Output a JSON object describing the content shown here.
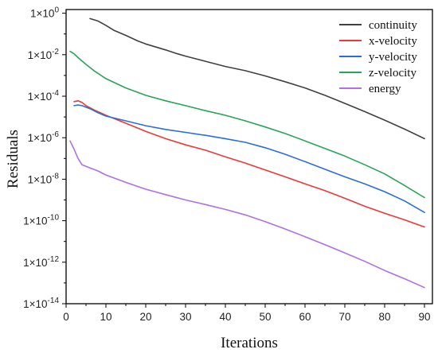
{
  "chart_data": {
    "type": "line",
    "xlabel": "Iterations",
    "ylabel": "Residuals",
    "x_scale": "linear",
    "y_scale": "log",
    "xlim": [
      0,
      92
    ],
    "ylim": [
      1e-14,
      1.5
    ],
    "xticks": [
      0,
      10,
      20,
      30,
      40,
      50,
      60,
      70,
      80,
      90
    ],
    "yticks": [
      {
        "value": 1,
        "exp": "0"
      },
      {
        "value": 0.01,
        "exp": "-2"
      },
      {
        "value": 0.0001,
        "exp": "-4"
      },
      {
        "value": 1e-06,
        "exp": "-6"
      },
      {
        "value": 1e-08,
        "exp": "-8"
      },
      {
        "value": 1e-10,
        "exp": "-10"
      },
      {
        "value": 1e-12,
        "exp": "-12"
      },
      {
        "value": 1e-14,
        "exp": "-14"
      }
    ],
    "ytick_base": "1×10",
    "grid": false,
    "legend_position": "top-right",
    "series": [
      {
        "name": "continuity",
        "color": "#404040",
        "points": [
          [
            6,
            0.55
          ],
          [
            8,
            0.42
          ],
          [
            10,
            0.26
          ],
          [
            12,
            0.15
          ],
          [
            15,
            0.085
          ],
          [
            18,
            0.046
          ],
          [
            20,
            0.033
          ],
          [
            25,
            0.017
          ],
          [
            28,
            0.011
          ],
          [
            30,
            0.0085
          ],
          [
            35,
            0.0048
          ],
          [
            40,
            0.0027
          ],
          [
            45,
            0.0017
          ],
          [
            50,
            0.00095
          ],
          [
            55,
            0.0005
          ],
          [
            60,
            0.00025
          ],
          [
            65,
            0.00011
          ],
          [
            70,
            4.5e-05
          ],
          [
            75,
            1.8e-05
          ],
          [
            80,
            7e-06
          ],
          [
            85,
            2.6e-06
          ],
          [
            90,
            9e-07
          ]
        ]
      },
      {
        "name": "x-velocity",
        "color": "#e83a3a",
        "points": [
          [
            2,
            5.5e-05
          ],
          [
            3,
            6e-05
          ],
          [
            4,
            5e-05
          ],
          [
            5,
            3.5e-05
          ],
          [
            7,
            2.2e-05
          ],
          [
            10,
            1.2e-05
          ],
          [
            15,
            5e-06
          ],
          [
            20,
            2e-06
          ],
          [
            25,
            9e-07
          ],
          [
            30,
            4.5e-07
          ],
          [
            35,
            2.5e-07
          ],
          [
            40,
            1.2e-07
          ],
          [
            45,
            6e-08
          ],
          [
            50,
            2.8e-08
          ],
          [
            55,
            1.3e-08
          ],
          [
            60,
            6e-09
          ],
          [
            65,
            2.8e-09
          ],
          [
            70,
            1.2e-09
          ],
          [
            75,
            5e-10
          ],
          [
            80,
            2.3e-10
          ],
          [
            85,
            1.1e-10
          ],
          [
            90,
            5e-11
          ]
        ]
      },
      {
        "name": "y-velocity",
        "color": "#2a6fd6",
        "points": [
          [
            2,
            3.5e-05
          ],
          [
            3,
            3.8e-05
          ],
          [
            4,
            3.5e-05
          ],
          [
            6,
            2.5e-05
          ],
          [
            8,
            1.6e-05
          ],
          [
            10,
            1.1e-05
          ],
          [
            15,
            6.5e-06
          ],
          [
            20,
            3.8e-06
          ],
          [
            25,
            2.5e-06
          ],
          [
            30,
            1.8e-06
          ],
          [
            35,
            1.3e-06
          ],
          [
            40,
            9e-07
          ],
          [
            45,
            6e-07
          ],
          [
            50,
            3.3e-07
          ],
          [
            55,
            1.6e-07
          ],
          [
            60,
            7e-08
          ],
          [
            65,
            3e-08
          ],
          [
            70,
            1.3e-08
          ],
          [
            75,
            6e-09
          ],
          [
            80,
            2.5e-09
          ],
          [
            85,
            9e-10
          ],
          [
            90,
            2.5e-10
          ]
        ]
      },
      {
        "name": "z-velocity",
        "color": "#2aa35a",
        "points": [
          [
            1,
            0.0145
          ],
          [
            2,
            0.011
          ],
          [
            3,
            0.0072
          ],
          [
            5,
            0.0034
          ],
          [
            7,
            0.0017
          ],
          [
            10,
            0.0007
          ],
          [
            15,
            0.00025
          ],
          [
            20,
            0.00011
          ],
          [
            25,
            6e-05
          ],
          [
            30,
            3.5e-05
          ],
          [
            35,
            2e-05
          ],
          [
            40,
            1.2e-05
          ],
          [
            45,
            6.5e-06
          ],
          [
            50,
            3.3e-06
          ],
          [
            55,
            1.6e-06
          ],
          [
            60,
            7e-07
          ],
          [
            65,
            3e-07
          ],
          [
            70,
            1.3e-07
          ],
          [
            75,
            5e-08
          ],
          [
            80,
            1.8e-08
          ],
          [
            85,
            5e-09
          ],
          [
            90,
            1.3e-09
          ]
        ]
      },
      {
        "name": "energy",
        "color": "#b070e0",
        "points": [
          [
            1,
            7e-07
          ],
          [
            2,
            2.8e-07
          ],
          [
            3,
            1e-07
          ],
          [
            4,
            5e-08
          ],
          [
            6,
            3.5e-08
          ],
          [
            8,
            2.5e-08
          ],
          [
            10,
            1.6e-08
          ],
          [
            15,
            7e-09
          ],
          [
            20,
            3.3e-09
          ],
          [
            25,
            1.8e-09
          ],
          [
            30,
            1e-09
          ],
          [
            35,
            6e-10
          ],
          [
            40,
            3.5e-10
          ],
          [
            45,
            1.9e-10
          ],
          [
            50,
            9e-11
          ],
          [
            55,
            4e-11
          ],
          [
            60,
            1.7e-11
          ],
          [
            65,
            7e-12
          ],
          [
            70,
            2.8e-12
          ],
          [
            75,
            1.1e-12
          ],
          [
            80,
            4e-13
          ],
          [
            85,
            1.6e-13
          ],
          [
            90,
            6e-14
          ]
        ]
      }
    ]
  }
}
